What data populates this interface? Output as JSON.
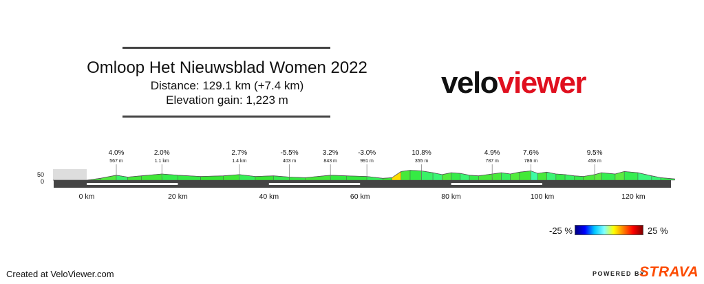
{
  "header": {
    "title": "Omloop Het Nieuwsblad Women 2022",
    "distance": "Distance: 129.1 km (+7.4 km)",
    "elevation_gain": "Elevation gain: 1,223 m"
  },
  "logo": {
    "part1": "velo",
    "part2": "viewer"
  },
  "footer": {
    "created": "Created at VeloViewer.com",
    "powered_by": "POWERED BY",
    "strava": "STRAVA"
  },
  "legend": {
    "min_label": "-25 %",
    "max_label": "25 %",
    "colors": [
      "#00007f",
      "#0000ff",
      "#00c8ff",
      "#7fffff",
      "#ffff00",
      "#ff7f00",
      "#ff0000",
      "#7f0000"
    ]
  },
  "chart_data": {
    "type": "area",
    "x_unit": "km",
    "xlim": [
      -7.4,
      129.1
    ],
    "y_ticks": [
      "50",
      "0"
    ],
    "x_ticks": [
      {
        "km": 0,
        "label": "0 km"
      },
      {
        "km": 20,
        "label": "20 km"
      },
      {
        "km": 40,
        "label": "40 km"
      },
      {
        "km": 60,
        "label": "60 km"
      },
      {
        "km": 80,
        "label": "80 km"
      },
      {
        "km": 100,
        "label": "100 km"
      },
      {
        "km": 120,
        "label": "120 km"
      }
    ],
    "neutral_zone_km": [
      -7.4,
      0
    ],
    "climbs": [
      {
        "km": 6.5,
        "gradient": "4.0%",
        "length": "567 m"
      },
      {
        "km": 16.5,
        "gradient": "2.0%",
        "length": "1.1 km"
      },
      {
        "km": 33.5,
        "gradient": "2.7%",
        "length": "1.4 km"
      },
      {
        "km": 44.5,
        "gradient": "-5.5%",
        "length": "403 m"
      },
      {
        "km": 53.5,
        "gradient": "3.2%",
        "length": "843 m"
      },
      {
        "km": 61.5,
        "gradient": "-3.0%",
        "length": "991 m"
      },
      {
        "km": 73.5,
        "gradient": "10.8%",
        "length": "355 m"
      },
      {
        "km": 89.0,
        "gradient": "4.9%",
        "length": "787 m"
      },
      {
        "km": 97.5,
        "gradient": "7.6%",
        "length": "786 m"
      },
      {
        "km": 111.5,
        "gradient": "9.5%",
        "length": "458 m"
      }
    ],
    "elevation_profile": [
      [
        -7.4,
        0
      ],
      [
        0,
        0
      ],
      [
        3,
        3
      ],
      [
        6.5,
        8
      ],
      [
        9,
        5
      ],
      [
        12,
        7
      ],
      [
        16.5,
        10
      ],
      [
        20,
        8
      ],
      [
        25,
        6
      ],
      [
        30,
        7
      ],
      [
        33.5,
        9
      ],
      [
        37,
        6
      ],
      [
        41,
        7
      ],
      [
        44.5,
        5
      ],
      [
        48,
        4
      ],
      [
        53.5,
        8
      ],
      [
        57,
        7
      ],
      [
        61.5,
        6
      ],
      [
        65,
        3
      ],
      [
        67,
        4
      ],
      [
        69,
        14
      ],
      [
        71,
        16
      ],
      [
        73.5,
        15
      ],
      [
        76,
        12
      ],
      [
        78,
        9
      ],
      [
        80,
        12
      ],
      [
        82,
        11
      ],
      [
        84,
        8
      ],
      [
        86,
        7
      ],
      [
        89,
        10
      ],
      [
        91,
        12
      ],
      [
        93,
        10
      ],
      [
        95,
        13
      ],
      [
        97.5,
        15
      ],
      [
        99,
        11
      ],
      [
        101,
        13
      ],
      [
        103,
        10
      ],
      [
        105,
        9
      ],
      [
        107,
        7
      ],
      [
        109,
        6
      ],
      [
        111.5,
        9
      ],
      [
        113,
        12
      ],
      [
        116,
        10
      ],
      [
        118,
        14
      ],
      [
        121,
        12
      ],
      [
        124,
        7
      ],
      [
        126,
        4
      ],
      [
        129.1,
        2
      ]
    ]
  }
}
